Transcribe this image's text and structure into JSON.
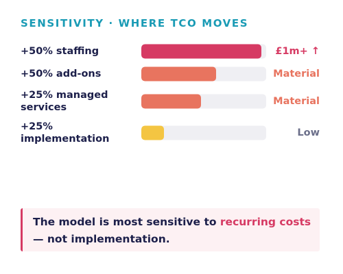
{
  "chart_data": {
    "type": "bar",
    "orientation": "horizontal",
    "title": "SENSITIVITY · WHERE TCO MOVES",
    "categories": [
      "+50% staffing",
      "+50% add-ons",
      "+25% managed services",
      "+25% implementation"
    ],
    "values": [
      96,
      60,
      48,
      18
    ],
    "value_labels": [
      "£1m+ ↑",
      "Material",
      "Material",
      "Low"
    ],
    "colors": [
      "#d63a63",
      "#e8745f",
      "#e8745f",
      "#f4c542"
    ],
    "label_colors": [
      "#d63a63",
      "#e8745f",
      "#e8745f",
      "#6b6f8a"
    ],
    "xlim": [
      0,
      100
    ]
  },
  "callout": {
    "text_before": "The model is most sensitive to ",
    "highlight": "recurring costs",
    "text_after": " — not implementation."
  }
}
